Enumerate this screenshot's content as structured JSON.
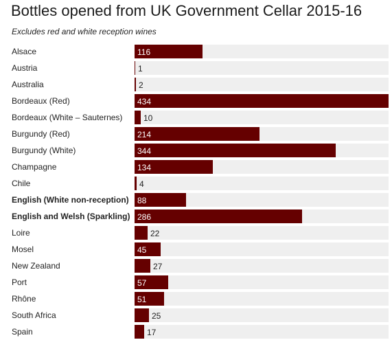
{
  "chart_data": {
    "type": "bar",
    "orientation": "horizontal",
    "title": "Bottles opened from UK Government Cellar 2015-16",
    "subtitle": "Excludes red and white reception wines",
    "categories": [
      "Alsace",
      "Austria",
      "Australia",
      "Bordeaux (Red)",
      "Bordeaux (White – Sauternes)",
      "Burgundy (Red)",
      "Burgundy (White)",
      "Champagne",
      "Chile",
      "English (White non-reception)",
      "English and Welsh (Sparkling)",
      "Loire",
      "Mosel",
      "New Zealand",
      "Port",
      "Rhône",
      "South Africa",
      "Spain"
    ],
    "values": [
      116,
      1,
      2,
      434,
      10,
      214,
      344,
      134,
      4,
      88,
      286,
      22,
      45,
      27,
      57,
      51,
      25,
      17
    ],
    "bold_categories": [
      "English (White non-reception)",
      "English and Welsh (Sparkling)"
    ],
    "xlim": [
      0,
      434
    ],
    "grid": false,
    "legend": "none",
    "colors": {
      "bar": "#650000",
      "track": "#efefef",
      "label_inside": "#ffffff"
    }
  }
}
